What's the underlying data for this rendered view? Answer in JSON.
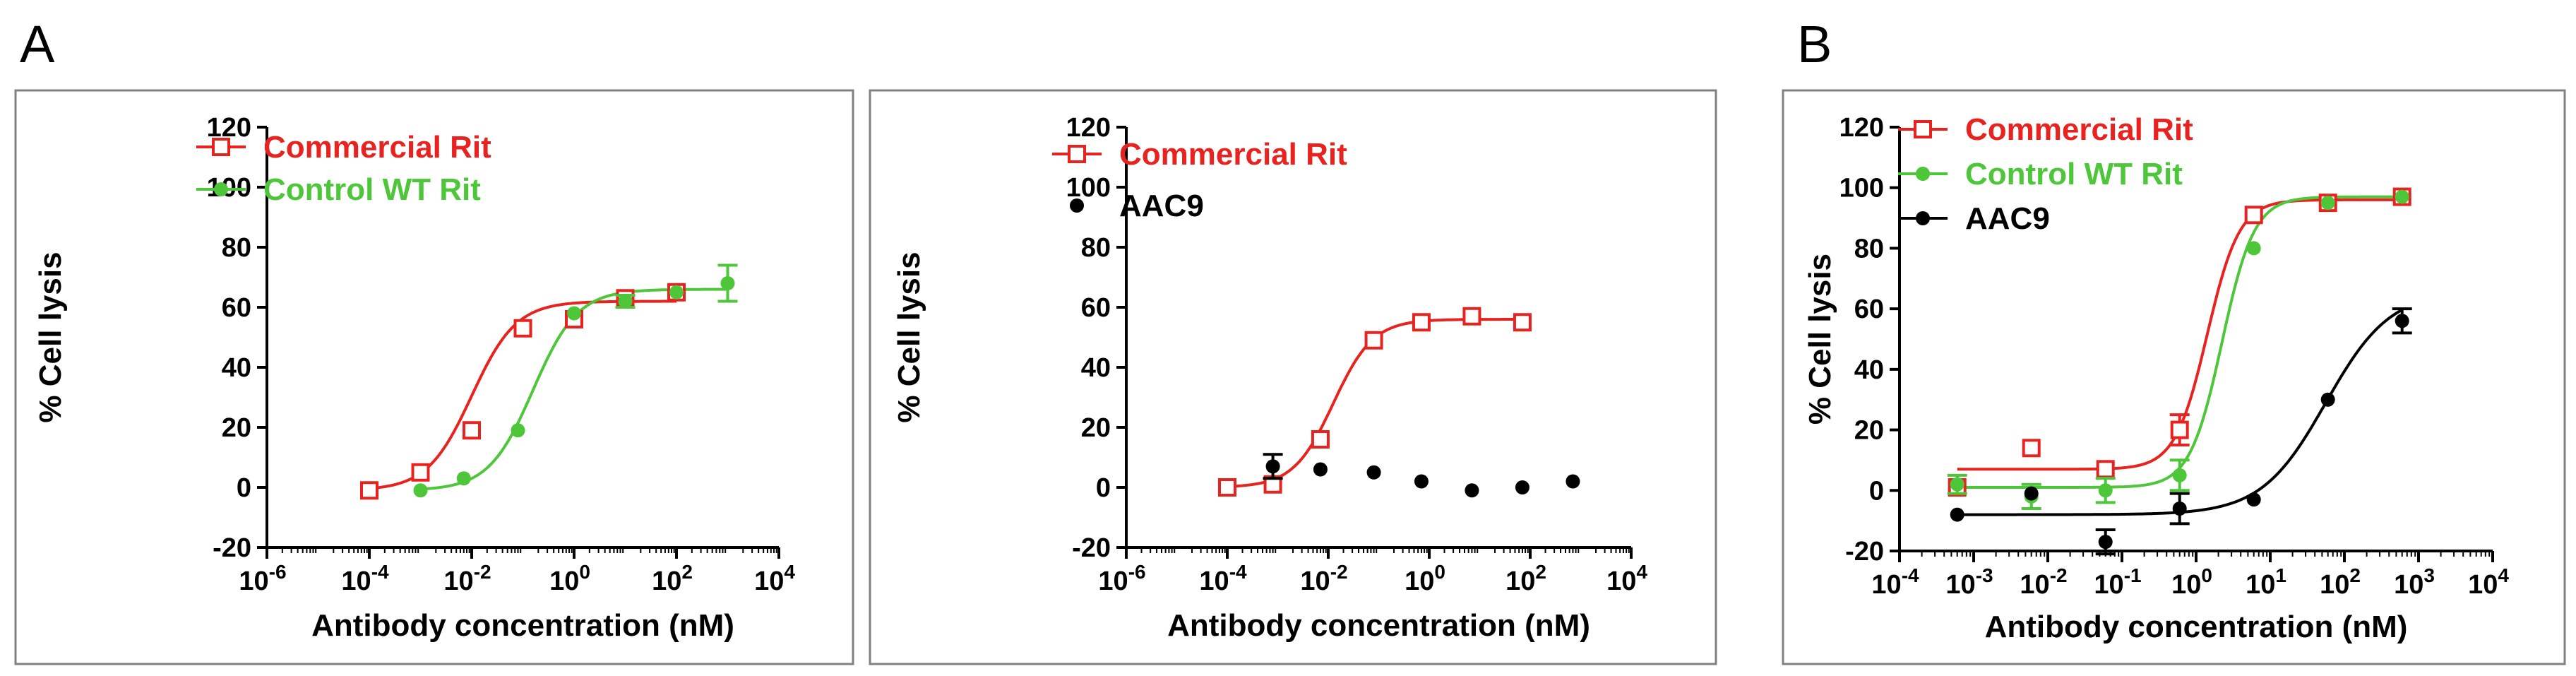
{
  "panel_labels": [
    "A",
    "B"
  ],
  "chart_data": [
    {
      "type": "scatter",
      "title": "",
      "xlabel": "Antibody concentration (nM)",
      "ylabel": "% Cell lysis",
      "x_scale": "log10",
      "xlim_exp": [
        -6,
        4
      ],
      "x_ticks": [
        {
          "base": "10",
          "exp": "-6"
        },
        {
          "base": "10",
          "exp": "-4"
        },
        {
          "base": "10",
          "exp": "-2"
        },
        {
          "base": "10",
          "exp": "0"
        },
        {
          "base": "10",
          "exp": "2"
        },
        {
          "base": "10",
          "exp": "4"
        }
      ],
      "ylim": [
        -20,
        120
      ],
      "y_ticks": [
        "-20",
        "0",
        "20",
        "40",
        "60",
        "80",
        "100",
        "120"
      ],
      "legend_position": "top-left",
      "series": [
        {
          "name": "Commercial Rit",
          "color": "#e8231f",
          "marker": "open-square",
          "points": [
            {
              "x": 0.0001,
              "y": -1
            },
            {
              "x": 0.001,
              "y": 5
            },
            {
              "x": 0.01,
              "y": 19
            },
            {
              "x": 0.1,
              "y": 53
            },
            {
              "x": 1,
              "y": 56
            },
            {
              "x": 10,
              "y": 63
            },
            {
              "x": 100,
              "y": 65
            }
          ],
          "fit": {
            "bottom": -1,
            "top": 62,
            "log_ec50": -2,
            "hill": 1.0
          }
        },
        {
          "name": "Control WT Rit",
          "color": "#4dc63a",
          "marker": "filled-circle",
          "points": [
            {
              "x": 0.001,
              "y": -1
            },
            {
              "x": 0.007,
              "y": 3
            },
            {
              "x": 0.08,
              "y": 19
            },
            {
              "x": 1,
              "y": 58
            },
            {
              "x": 10,
              "y": 62,
              "err": 2
            },
            {
              "x": 100,
              "y": 65
            },
            {
              "x": 1000,
              "y": 68,
              "err": 6
            }
          ],
          "fit": {
            "bottom": -1,
            "top": 66,
            "log_ec50": -0.8,
            "hill": 1.0
          }
        }
      ]
    },
    {
      "type": "scatter",
      "title": "",
      "xlabel": "Antibody concentration (nM)",
      "ylabel": "% Cell lysis",
      "x_scale": "log10",
      "xlim_exp": [
        -6,
        4
      ],
      "x_ticks": [
        {
          "base": "10",
          "exp": "-6"
        },
        {
          "base": "10",
          "exp": "-4"
        },
        {
          "base": "10",
          "exp": "-2"
        },
        {
          "base": "10",
          "exp": "0"
        },
        {
          "base": "10",
          "exp": "2"
        },
        {
          "base": "10",
          "exp": "4"
        }
      ],
      "ylim": [
        -20,
        120
      ],
      "y_ticks": [
        "-20",
        "0",
        "20",
        "40",
        "60",
        "80",
        "100",
        "120"
      ],
      "legend_position": "top-left",
      "series": [
        {
          "name": "Commercial Rit",
          "color": "#e8231f",
          "marker": "open-square",
          "points": [
            {
              "x": 0.0001,
              "y": 0
            },
            {
              "x": 0.0008,
              "y": 1
            },
            {
              "x": 0.007,
              "y": 16
            },
            {
              "x": 0.08,
              "y": 49
            },
            {
              "x": 0.7,
              "y": 55
            },
            {
              "x": 7,
              "y": 57
            },
            {
              "x": 70,
              "y": 55
            }
          ],
          "fit": {
            "bottom": 0,
            "top": 56,
            "log_ec50": -1.9,
            "hill": 1.1
          }
        },
        {
          "name": "AAC9",
          "color": "#000000",
          "marker": "filled-circle",
          "points": [
            {
              "x": 0.0008,
              "y": 7,
              "err": 4
            },
            {
              "x": 0.007,
              "y": 6
            },
            {
              "x": 0.08,
              "y": 5
            },
            {
              "x": 0.7,
              "y": 2
            },
            {
              "x": 7,
              "y": -1
            },
            {
              "x": 70,
              "y": 0
            },
            {
              "x": 700,
              "y": 2
            }
          ],
          "fit": null
        }
      ]
    },
    {
      "type": "scatter",
      "title": "",
      "xlabel": "Antibody concentration (nM)",
      "ylabel": "% Cell lysis",
      "x_scale": "log10",
      "xlim_exp": [
        -4,
        4
      ],
      "x_ticks": [
        {
          "base": "10",
          "exp": "-4"
        },
        {
          "base": "10",
          "exp": "-3"
        },
        {
          "base": "10",
          "exp": "-2"
        },
        {
          "base": "10",
          "exp": "-1"
        },
        {
          "base": "10",
          "exp": "0"
        },
        {
          "base": "10",
          "exp": "1"
        },
        {
          "base": "10",
          "exp": "2"
        },
        {
          "base": "10",
          "exp": "3"
        },
        {
          "base": "10",
          "exp": "4"
        }
      ],
      "ylim": [
        -20,
        120
      ],
      "y_ticks": [
        "-20",
        "0",
        "20",
        "40",
        "60",
        "80",
        "100",
        "120"
      ],
      "legend_position": "top-left",
      "series": [
        {
          "name": "Commercial Rit",
          "color": "#e8231f",
          "marker": "open-square",
          "points": [
            {
              "x": 0.0006,
              "y": 1
            },
            {
              "x": 0.006,
              "y": 14
            },
            {
              "x": 0.06,
              "y": 7
            },
            {
              "x": 0.6,
              "y": 20,
              "err": 5
            },
            {
              "x": 6,
              "y": 91
            },
            {
              "x": 60,
              "y": 95
            },
            {
              "x": 600,
              "y": 97
            }
          ],
          "fit": {
            "bottom": 7,
            "top": 96,
            "log_ec50": 0.15,
            "hill": 2.0
          }
        },
        {
          "name": "Control WT Rit",
          "color": "#4dc63a",
          "marker": "filled-circle",
          "points": [
            {
              "x": 0.0006,
              "y": 2,
              "err": 3
            },
            {
              "x": 0.006,
              "y": -2,
              "err": 4
            },
            {
              "x": 0.06,
              "y": 0,
              "err": 4
            },
            {
              "x": 0.6,
              "y": 5,
              "err": 5
            },
            {
              "x": 6,
              "y": 80
            },
            {
              "x": 60,
              "y": 95
            },
            {
              "x": 600,
              "y": 97
            }
          ],
          "fit": {
            "bottom": 1,
            "top": 97,
            "log_ec50": 0.35,
            "hill": 2.0
          }
        },
        {
          "name": "AAC9",
          "color": "#000000",
          "marker": "filled-circle",
          "points": [
            {
              "x": 0.0006,
              "y": -8
            },
            {
              "x": 0.006,
              "y": -1
            },
            {
              "x": 0.06,
              "y": -17,
              "err": 4
            },
            {
              "x": 0.6,
              "y": -6,
              "err": 5
            },
            {
              "x": 6,
              "y": -3
            },
            {
              "x": 60,
              "y": 30
            },
            {
              "x": 600,
              "y": 56,
              "err": 4
            }
          ],
          "fit": {
            "bottom": -8,
            "top": 66,
            "log_ec50": 1.75,
            "hill": 1.0
          }
        }
      ]
    }
  ]
}
